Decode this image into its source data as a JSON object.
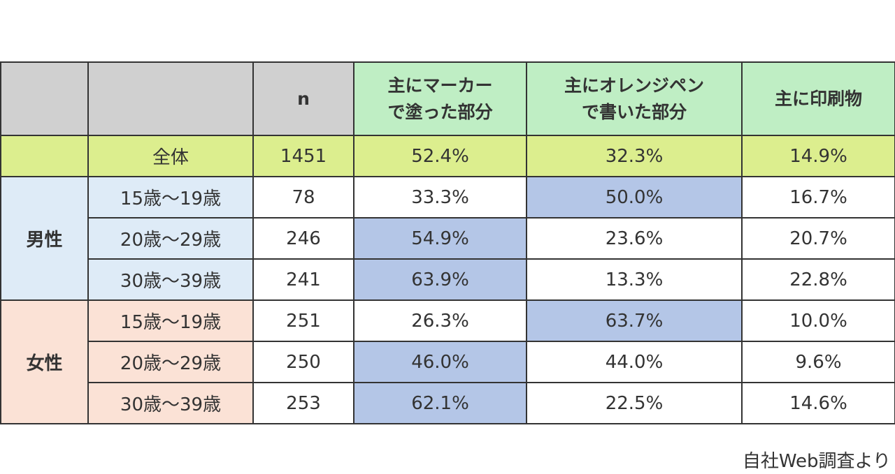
{
  "table": {
    "header": {
      "n": "n",
      "columns": [
        [
          "主にマーカー",
          "で塗った部分"
        ],
        [
          "主にオレンジペン",
          "で書いた部分"
        ],
        [
          "主に印刷物"
        ]
      ]
    },
    "total": {
      "label": "全体",
      "n": 1451,
      "values": [
        "52.4%",
        "32.3%",
        "14.9%"
      ]
    },
    "groups": [
      {
        "label": "男性",
        "rows": [
          {
            "age": "15歳〜19歳",
            "n": 78,
            "values": [
              "33.3%",
              "50.0%",
              "16.7%"
            ]
          },
          {
            "age": "20歳〜29歳",
            "n": 246,
            "values": [
              "54.9%",
              "23.6%",
              "20.7%"
            ]
          },
          {
            "age": "30歳〜39歳",
            "n": 241,
            "values": [
              "63.9%",
              "13.3%",
              "22.8%"
            ]
          }
        ]
      },
      {
        "label": "女性",
        "rows": [
          {
            "age": "15歳〜19歳",
            "n": 251,
            "values": [
              "26.3%",
              "63.7%",
              "10.0%"
            ]
          },
          {
            "age": "20歳〜29歳",
            "n": 250,
            "values": [
              "46.0%",
              "44.0%",
              "9.6%"
            ]
          },
          {
            "age": "30歳〜39歳",
            "n": 253,
            "values": [
              "62.1%",
              "22.5%",
              "14.6%"
            ]
          }
        ]
      }
    ]
  },
  "footnote": "自社Web調査より"
}
